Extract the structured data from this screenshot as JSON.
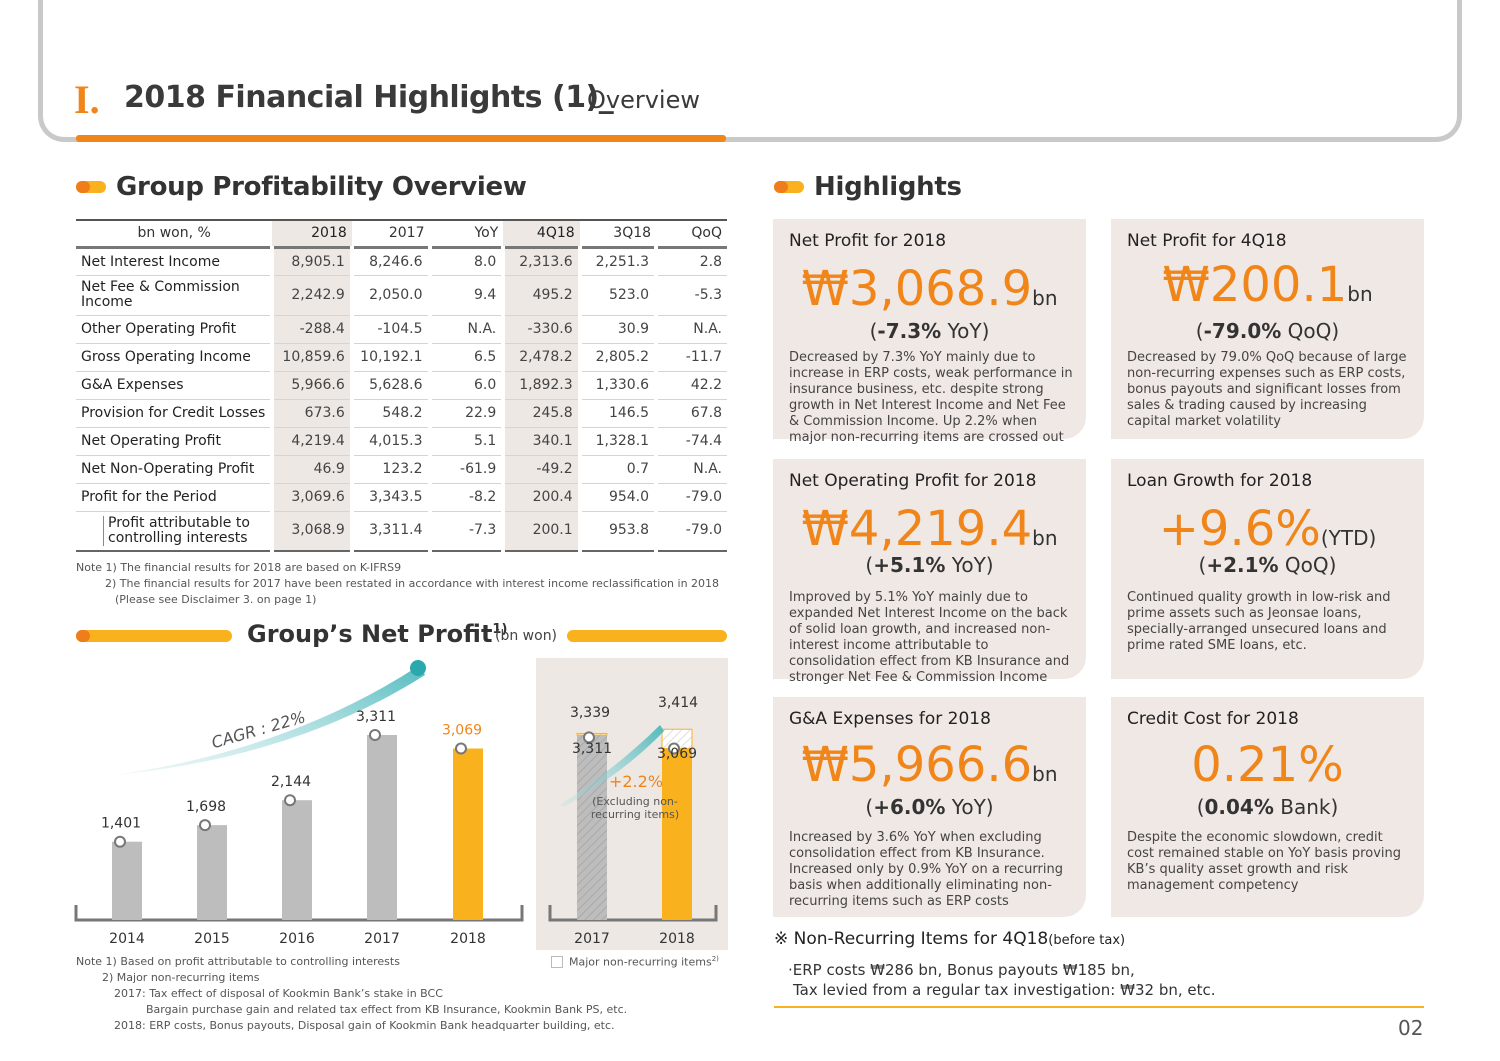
{
  "header": {
    "num": "I.",
    "title": "2018 Financial Highlights (1)_",
    "subtitle": "Overview"
  },
  "profitability": {
    "heading": "Group Profitability Overview",
    "columns": [
      "bn won, %",
      "2018",
      "2017",
      "YoY",
      "4Q18",
      "3Q18",
      "QoQ"
    ],
    "rows": [
      {
        "label": "Net Interest Income",
        "v": [
          "8,905.1",
          "8,246.6",
          "8.0",
          "2,313.6",
          "2,251.3",
          "2.8"
        ]
      },
      {
        "label": "Net Fee & Commission Income",
        "v": [
          "2,242.9",
          "2,050.0",
          "9.4",
          "495.2",
          "523.0",
          "-5.3"
        ]
      },
      {
        "label": "Other Operating Profit",
        "v": [
          "-288.4",
          "-104.5",
          "N.A.",
          "-330.6",
          "30.9",
          "N.A."
        ]
      },
      {
        "label": "Gross Operating Income",
        "v": [
          "10,859.6",
          "10,192.1",
          "6.5",
          "2,478.2",
          "2,805.2",
          "-11.7"
        ]
      },
      {
        "label": "G&A Expenses",
        "v": [
          "5,966.6",
          "5,628.6",
          "6.0",
          "1,892.3",
          "1,330.6",
          "42.2"
        ]
      },
      {
        "label": "Provision for Credit Losses",
        "v": [
          "673.6",
          "548.2",
          "22.9",
          "245.8",
          "146.5",
          "67.8"
        ]
      },
      {
        "label": "Net Operating Profit",
        "v": [
          "4,219.4",
          "4,015.3",
          "5.1",
          "340.1",
          "1,328.1",
          "-74.4"
        ]
      },
      {
        "label": "Net Non-Operating Profit",
        "v": [
          "46.9",
          "123.2",
          "-61.9",
          "-49.2",
          "0.7",
          "N.A."
        ]
      },
      {
        "label": "Profit for the Period",
        "v": [
          "3,069.6",
          "3,343.5",
          "-8.2",
          "200.4",
          "954.0",
          "-79.0"
        ]
      },
      {
        "label": "Profit attributable to controlling interests",
        "v": [
          "3,068.9",
          "3,311.4",
          "-7.3",
          "200.1",
          "953.8",
          "-79.0"
        ]
      }
    ],
    "notes": [
      "Note 1) The financial results for 2018 are based on K-IFRS9",
      "2) The financial results for 2017 have been restated in accordance with interest income reclassification in 2018",
      "(Please see Disclaimer 3. on page 1)"
    ]
  },
  "net_profit": {
    "title": "Group’s Net Profit",
    "title_sup": "1)",
    "unit": "(bn won)",
    "cagr": "CAGR : 22%",
    "growth_label": "+2.2%",
    "growth_note_1": "(Excluding non-",
    "growth_note_2": "recurring items)",
    "legend": "Major non-recurring items",
    "legend_sup": "2)",
    "notes": [
      "Note 1) Based on profit attributable to controlling interests",
      "2) Major non-recurring items",
      "2017: Tax effect of disposal of Kookmin Bank’s stake in BCC",
      "Bargain purchase gain and related tax effect from KB Insurance, Kookmin Bank PS, etc.",
      "2018: ERP costs, Bonus payouts, Disposal gain of Kookmin Bank headquarter building, etc."
    ]
  },
  "chart_data": {
    "type": "bar",
    "title": "Group’s Net Profit",
    "ylabel": "bn won",
    "categories": [
      "2014",
      "2015",
      "2016",
      "2017",
      "2018"
    ],
    "values": [
      1401,
      1698,
      2144,
      3311,
      3069
    ],
    "labels": [
      "1,401",
      "1,698",
      "2,144",
      "3,311",
      "3,069"
    ],
    "highlight_color": "#f9b11e",
    "base_color": "#bdbdbd",
    "recurring_comparison": {
      "categories": [
        "2017",
        "2018"
      ],
      "reported": [
        3311,
        3069
      ],
      "excluding_non_recurring": [
        3339,
        3414
      ],
      "reported_labels": [
        "3,311",
        "3,069"
      ],
      "excluding_labels": [
        "3,339",
        "3,414"
      ]
    }
  },
  "highlights": {
    "heading": "Highlights",
    "cards": [
      {
        "title": "Net Profit for 2018",
        "big": "₩3,068.9",
        "suffix": "bn",
        "sub_pre": "(",
        "sub_bold": "-7.3%",
        "sub_post": " YoY)",
        "desc": "Decreased by 7.3% YoY mainly due to increase in ERP costs, weak performance in insurance business, etc. despite strong growth in Net Interest Income and Net Fee & Commission Income. Up 2.2% when major non-recurring items are crossed out"
      },
      {
        "title": "Net Profit for 4Q18",
        "big": "₩200.1",
        "suffix": "bn",
        "sub_pre": "(",
        "sub_bold": "-79.0%",
        "sub_post": " QoQ)",
        "desc": "Decreased by 79.0% QoQ because of large non-recurring expenses such as ERP costs, bonus payouts and significant losses from sales & trading caused by increasing capital market volatility"
      },
      {
        "title": "Net Operating Profit for 2018",
        "big": "₩4,219.4",
        "suffix": "bn",
        "sub_pre": "(",
        "sub_bold": "+5.1%",
        "sub_post": " YoY)",
        "desc": "Improved by 5.1% YoY mainly due to expanded Net Interest Income on the back of solid loan growth, and increased non-interest income attributable to consolidation effect from KB Insurance and stronger Net Fee & Commission Income"
      },
      {
        "title": "Loan Growth for 2018",
        "big": "+9.6%",
        "suffix": "(YTD)",
        "sub_pre": "(",
        "sub_bold": "+2.1%",
        "sub_post": " QoQ)",
        "desc": "Continued quality growth in low-risk and prime assets such as Jeonsae loans, specially-arranged unsecured loans and prime rated SME loans, etc."
      },
      {
        "title": "G&A Expenses for 2018",
        "big": "₩5,966.6",
        "suffix": "bn",
        "sub_pre": "(",
        "sub_bold": "+6.0%",
        "sub_post": " YoY)",
        "desc": "Increased by 3.6% YoY when excluding consolidation effect from KB Insurance. Increased only by 0.9% YoY on a recurring basis when additionally eliminating non-recurring items such as ERP costs"
      },
      {
        "title": "Credit Cost for 2018",
        "big": "0.21%",
        "suffix": "",
        "sub_pre": "(",
        "sub_bold": "0.04%",
        "sub_post": " Bank)",
        "desc": "Despite the economic slowdown, credit cost remained stable on YoY basis proving KB’s quality asset growth and risk management competency"
      }
    ],
    "non_recurring_title": "※ Non-Recurring Items for 4Q18",
    "non_recurring_qual": "(before tax)",
    "non_recurring_line1": "·ERP costs ₩286 bn, Bonus payouts ₩185 bn,",
    "non_recurring_line2": "Tax levied from a regular tax investigation: ₩32 bn, etc."
  },
  "page_number": "02"
}
